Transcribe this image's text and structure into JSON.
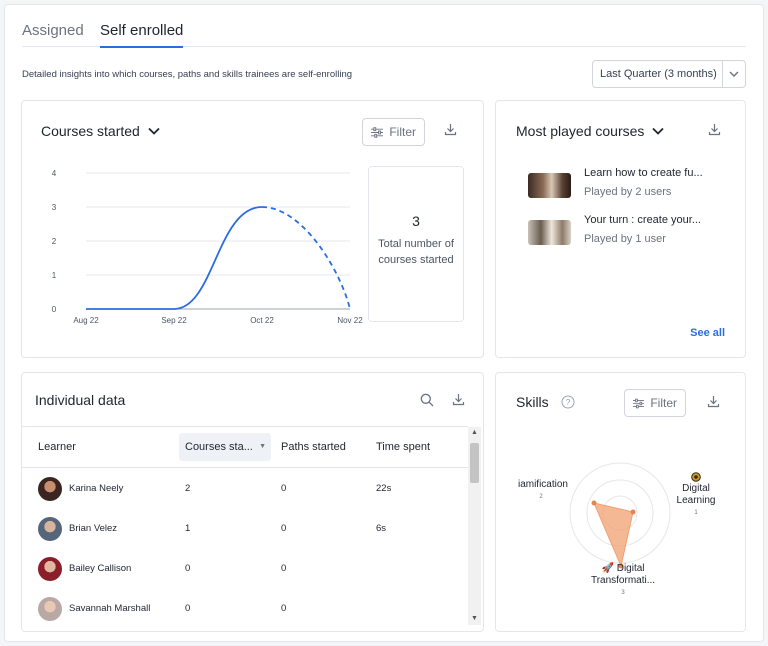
{
  "tabs": {
    "assigned": "Assigned",
    "self_enrolled": "Self enrolled"
  },
  "description": "Detailed insights into which courses, paths and skills trainees are self-enrolling",
  "period_select": {
    "value": "Last Quarter (3 months)"
  },
  "courses_started": {
    "title": "Courses started",
    "filter_label": "Filter",
    "stat_value": "3",
    "stat_label": "Total number of courses started",
    "chart_data": {
      "type": "line",
      "categories": [
        "Aug 22",
        "Sep 22",
        "Oct 22",
        "Nov 22"
      ],
      "values": [
        0,
        0,
        3,
        0
      ],
      "projected_segment": [
        "Oct 22",
        "Nov 22"
      ],
      "yticks": [
        "0",
        "1",
        "2",
        "3",
        "4"
      ],
      "ylim": [
        0,
        4
      ],
      "grid": true,
      "color": "#2b6de0"
    }
  },
  "most_played": {
    "title": "Most played courses",
    "items": [
      {
        "title": "Learn how to create fu...",
        "sub": "Played by 2 users"
      },
      {
        "title": "Your turn : create your...",
        "sub": "Played by 1 user"
      }
    ],
    "see_all": "See all"
  },
  "individual": {
    "title": "Individual data",
    "columns": [
      "Learner",
      "Courses sta...",
      "Paths started",
      "Time spent"
    ],
    "rows": [
      {
        "name": "Karina Neely",
        "courses": "2",
        "paths": "0",
        "time": "22s"
      },
      {
        "name": "Brian Velez",
        "courses": "1",
        "paths": "0",
        "time": "6s"
      },
      {
        "name": "Bailey Callison",
        "courses": "0",
        "paths": "0",
        "time": ""
      },
      {
        "name": "Savannah Marshall",
        "courses": "0",
        "paths": "0",
        "time": ""
      }
    ]
  },
  "skills": {
    "title": "Skills",
    "filter_label": "Filter",
    "axes": [
      {
        "label": "iamification",
        "value": "2"
      },
      {
        "label": "Digital Learning",
        "value": "1"
      },
      {
        "label": "Digital Transformati...",
        "value": "3"
      }
    ],
    "color": "#f0a070"
  }
}
